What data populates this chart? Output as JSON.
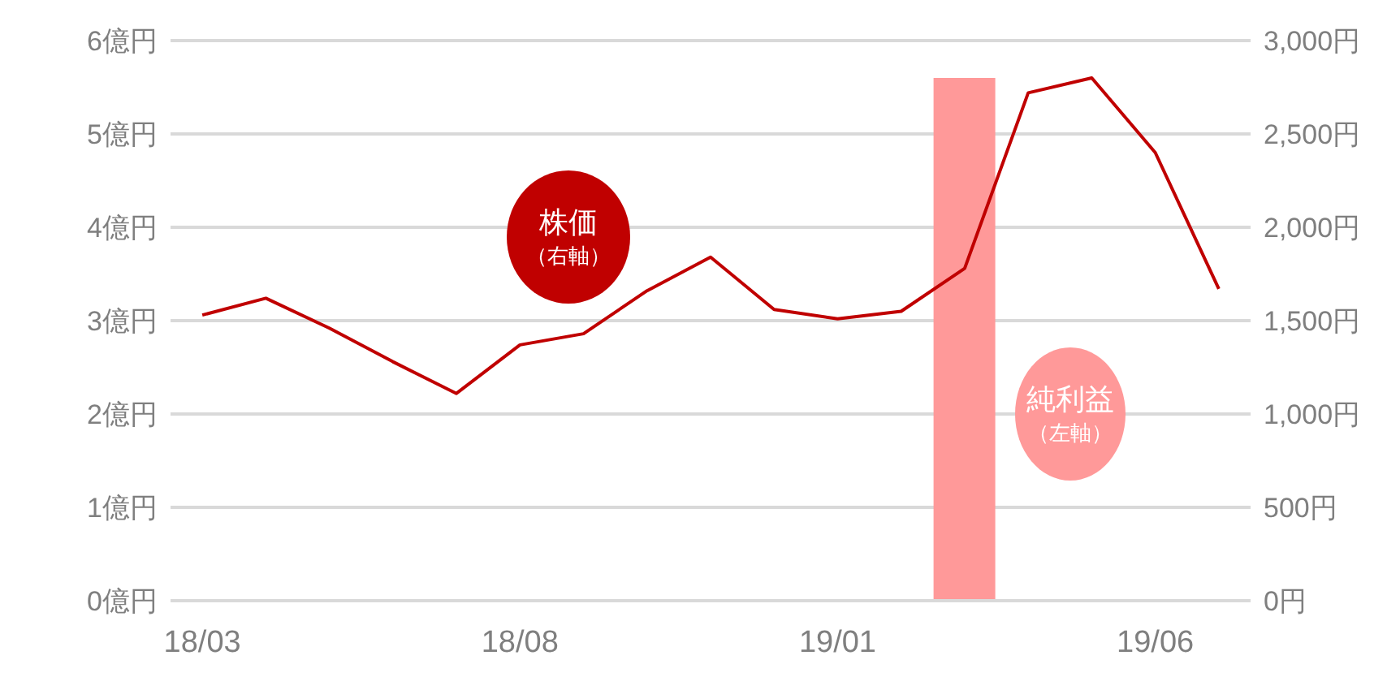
{
  "chart_data": {
    "type": "line",
    "categories": [
      "18/03",
      null,
      null,
      null,
      null,
      "18/08",
      null,
      null,
      null,
      null,
      "19/01",
      null,
      null,
      null,
      null,
      "19/06",
      null
    ],
    "series": [
      {
        "name": "純利益（左軸）",
        "type": "bar",
        "color": "#ff9999",
        "values": [
          null,
          null,
          null,
          null,
          null,
          null,
          null,
          null,
          null,
          null,
          null,
          null,
          5.6,
          null,
          null,
          null,
          null
        ]
      },
      {
        "name": "株価（右軸）",
        "axis": "y2",
        "color": "#c00000",
        "values": [
          1530,
          1620,
          1460,
          1280,
          1110,
          1370,
          1430,
          1660,
          1840,
          1560,
          1510,
          1550,
          1780,
          2720,
          2800,
          2400,
          1670
        ]
      }
    ],
    "ylim": [
      0,
      6
    ],
    "yticks": [
      {
        "value": 0,
        "label": "0億円"
      },
      {
        "value": 1,
        "label": "1億円"
      },
      {
        "value": 2,
        "label": "2億円"
      },
      {
        "value": 3,
        "label": "3億円"
      },
      {
        "value": 4,
        "label": "4億円"
      },
      {
        "value": 5,
        "label": "5億円"
      },
      {
        "value": 6,
        "label": "6億円"
      }
    ],
    "y2lim": [
      0,
      3000
    ],
    "y2ticks": [
      {
        "value": 0,
        "label": "0円"
      },
      {
        "value": 500,
        "label": "500円"
      },
      {
        "value": 1000,
        "label": "1,000円"
      },
      {
        "value": 1500,
        "label": "1,500円"
      },
      {
        "value": 2000,
        "label": "2,000円"
      },
      {
        "value": 2500,
        "label": "2,500円"
      },
      {
        "value": 3000,
        "label": "3,000円"
      }
    ],
    "grid": "y",
    "marker": "none",
    "line_style": "solid",
    "legend": false
  }
}
